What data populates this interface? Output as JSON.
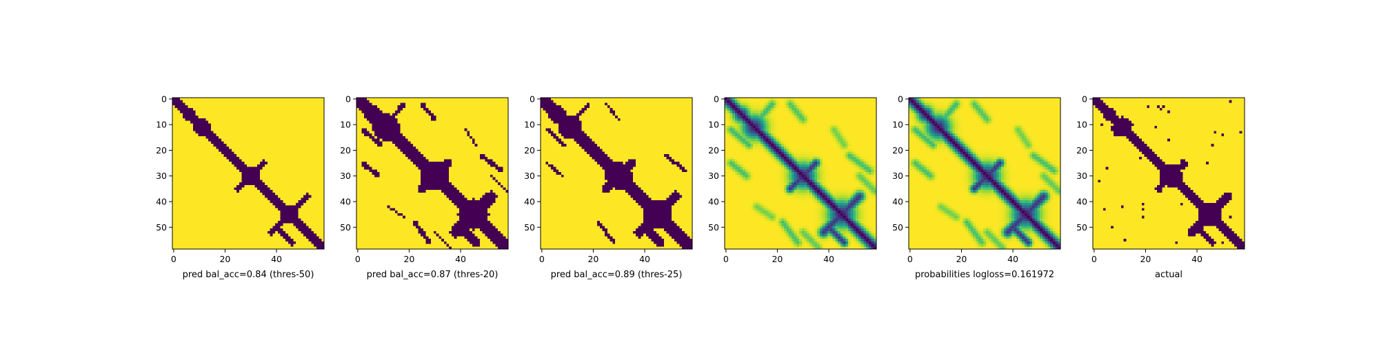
{
  "chart_data": [
    {
      "type": "heatmap",
      "title": "",
      "xlabel": "pred bal_acc=0.84 (thres-50)",
      "ylabel": "",
      "xlim": [
        0,
        59
      ],
      "ylim": [
        59,
        0
      ],
      "xticks": [
        "0",
        "20",
        "40"
      ],
      "yticks": [
        "0",
        "10",
        "20",
        "30",
        "40",
        "50"
      ],
      "grid": false,
      "legend": "none",
      "matrix_size": 59,
      "mode": "binary",
      "threshold": 0.5,
      "colormap": "viridis"
    },
    {
      "type": "heatmap",
      "title": "",
      "xlabel": "pred bal_acc=0.87 (thres-20)",
      "ylabel": "",
      "xlim": [
        0,
        59
      ],
      "ylim": [
        59,
        0
      ],
      "xticks": [
        "0",
        "20",
        "40"
      ],
      "yticks": [
        "0",
        "10",
        "20",
        "30",
        "40",
        "50"
      ],
      "grid": false,
      "legend": "none",
      "matrix_size": 59,
      "mode": "binary",
      "threshold": 0.2,
      "colormap": "viridis"
    },
    {
      "type": "heatmap",
      "title": "",
      "xlabel": "pred bal_acc=0.89 (thres-25)",
      "ylabel": "",
      "xlim": [
        0,
        59
      ],
      "ylim": [
        59,
        0
      ],
      "xticks": [
        "0",
        "20",
        "40"
      ],
      "yticks": [
        "0",
        "10",
        "20",
        "30",
        "40",
        "50"
      ],
      "grid": false,
      "legend": "none",
      "matrix_size": 59,
      "mode": "binary",
      "threshold": 0.25,
      "colormap": "viridis"
    },
    {
      "type": "heatmap",
      "title": "",
      "xlabel": "",
      "ylabel": "",
      "xlim": [
        0,
        59
      ],
      "ylim": [
        59,
        0
      ],
      "xticks": [
        "0",
        "20",
        "40"
      ],
      "yticks": [
        "0",
        "10",
        "20",
        "30",
        "40",
        "50"
      ],
      "grid": false,
      "legend": "none",
      "matrix_size": 59,
      "mode": "continuous",
      "colormap": "viridis"
    },
    {
      "type": "heatmap",
      "title": "",
      "xlabel": "probabilities logloss=0.161972",
      "ylabel": "",
      "xlim": [
        0,
        59
      ],
      "ylim": [
        59,
        0
      ],
      "xticks": [
        "0",
        "20",
        "40"
      ],
      "yticks": [
        "0",
        "10",
        "20",
        "30",
        "40",
        "50"
      ],
      "grid": false,
      "legend": "none",
      "matrix_size": 59,
      "mode": "continuous",
      "colormap": "viridis"
    },
    {
      "type": "heatmap",
      "title": "",
      "xlabel": "actual",
      "ylabel": "",
      "xlim": [
        0,
        59
      ],
      "ylim": [
        59,
        0
      ],
      "xticks": [
        "0",
        "20",
        "40"
      ],
      "yticks": [
        "0",
        "10",
        "20",
        "30",
        "40",
        "50"
      ],
      "grid": false,
      "legend": "none",
      "matrix_size": 59,
      "mode": "binary-noisy",
      "colormap": "viridis"
    }
  ],
  "colors": {
    "contact": "#440154",
    "background": "#fde725",
    "mid_teal": "#21918c",
    "mid_green": "#5ec962",
    "mid_blue": "#3b528b"
  }
}
